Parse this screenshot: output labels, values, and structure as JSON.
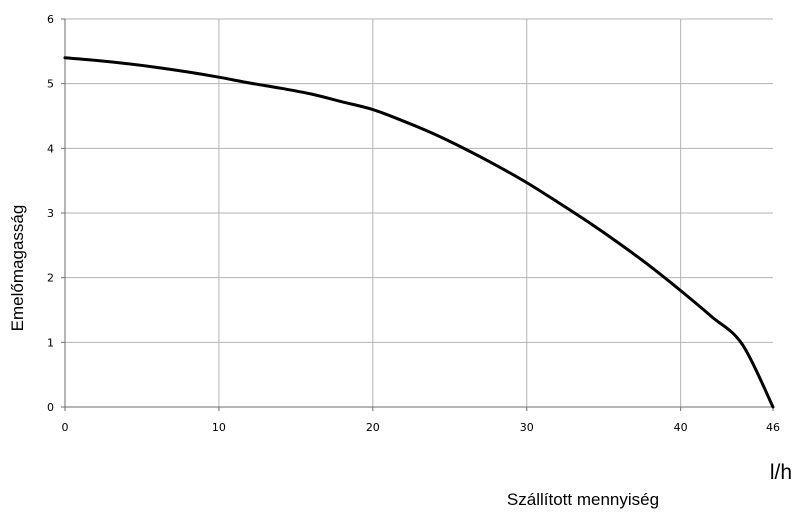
{
  "chart_data": {
    "type": "line",
    "title": "",
    "xlabel": "Szállított mennyiség",
    "ylabel": "Emelőmagasság",
    "x_unit": "l/h",
    "xlim": [
      0,
      46
    ],
    "ylim": [
      0,
      6
    ],
    "x_ticks": [
      0,
      10,
      20,
      30,
      40,
      46
    ],
    "y_ticks": [
      0,
      1,
      2,
      3,
      4,
      5,
      6
    ],
    "grid": true,
    "legend": "none",
    "line_color": "#000000",
    "series": [
      {
        "x": [
          0,
          2,
          4,
          6,
          8,
          10,
          12,
          14,
          16,
          18,
          20,
          22,
          24,
          26,
          28,
          30,
          32,
          34,
          36,
          38,
          40,
          42,
          44,
          46
        ],
        "y": [
          5.4,
          5.36,
          5.31,
          5.25,
          5.18,
          5.1,
          5.01,
          4.93,
          4.84,
          4.72,
          4.6,
          4.42,
          4.22,
          3.99,
          3.74,
          3.47,
          3.17,
          2.86,
          2.53,
          2.18,
          1.8,
          1.4,
          0.97,
          0.0
        ]
      }
    ]
  }
}
